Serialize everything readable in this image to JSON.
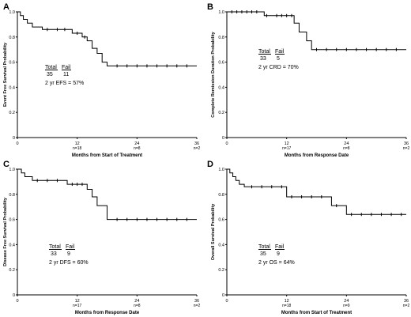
{
  "chart_data": [
    {
      "type": "line",
      "panel_label": "A",
      "xlabel": "Months from Start of Treatment",
      "ylabel": "Event Free Survival Probability",
      "xlim": [
        0,
        36
      ],
      "ylim": [
        0,
        1.0
      ],
      "x_ticks": [
        "0",
        "12",
        "24",
        "36"
      ],
      "y_ticks": [
        "0",
        "0.2",
        "0.4",
        "0.6",
        "0.8",
        "1.0"
      ],
      "at_risk": [
        {
          "x": 12,
          "label": "n=18"
        },
        {
          "x": 24,
          "label": "n=8"
        },
        {
          "x": 36,
          "label": "n=2"
        }
      ],
      "annotation": {
        "total_label": "Total",
        "fail_label": "Fail",
        "total": "35",
        "fail": "11",
        "summary": "2 yr  EFS = 57%"
      },
      "step_points": [
        [
          0,
          1.0
        ],
        [
          0.6,
          0.97
        ],
        [
          1.2,
          0.94
        ],
        [
          2.0,
          0.91
        ],
        [
          3.0,
          0.88
        ],
        [
          5.0,
          0.86
        ],
        [
          11.0,
          0.83
        ],
        [
          13.0,
          0.8
        ],
        [
          14.0,
          0.77
        ],
        [
          15.0,
          0.71
        ],
        [
          16.0,
          0.67
        ],
        [
          17.0,
          0.6
        ],
        [
          18.0,
          0.57
        ],
        [
          36.0,
          0.57
        ]
      ],
      "censor_x": [
        6,
        8,
        9.5,
        12,
        13.5,
        20,
        22,
        24,
        26,
        28,
        30,
        32,
        34
      ]
    },
    {
      "type": "line",
      "panel_label": "B",
      "xlabel": "Months from Response Date",
      "ylabel": "Complete Remission Duration Probability",
      "xlim": [
        0,
        36
      ],
      "ylim": [
        0,
        1.0
      ],
      "x_ticks": [
        "0",
        "12",
        "24",
        "36"
      ],
      "y_ticks": [
        "0",
        "0.2",
        "0.4",
        "0.6",
        "0.8",
        "1.0"
      ],
      "at_risk": [
        {
          "x": 12,
          "label": "n=17"
        },
        {
          "x": 24,
          "label": "n=8"
        },
        {
          "x": 36,
          "label": "n=2"
        }
      ],
      "annotation": {
        "total_label": "Total",
        "fail_label": "Fail",
        "total": "33",
        "fail": "5",
        "summary": "2 yr  CRD = 70%"
      },
      "step_points": [
        [
          0,
          1.0
        ],
        [
          7.5,
          0.97
        ],
        [
          13.5,
          0.91
        ],
        [
          14.5,
          0.84
        ],
        [
          16.0,
          0.77
        ],
        [
          17.0,
          0.7
        ],
        [
          36.0,
          0.7
        ]
      ],
      "censor_x": [
        1,
        2,
        3,
        4,
        5,
        6,
        8,
        10,
        11,
        12,
        13,
        18,
        20,
        22,
        24,
        26,
        28,
        30,
        32,
        34
      ]
    },
    {
      "type": "line",
      "panel_label": "C",
      "xlabel": "Months from Response Date",
      "ylabel": "Disease Free Survival Probability",
      "xlim": [
        0,
        36
      ],
      "ylim": [
        0,
        1.0
      ],
      "x_ticks": [
        "0",
        "12",
        "24",
        "36"
      ],
      "y_ticks": [
        "0",
        "0.2",
        "0.4",
        "0.6",
        "0.8",
        "1.0"
      ],
      "at_risk": [
        {
          "x": 12,
          "label": "n=17"
        },
        {
          "x": 24,
          "label": "n=8"
        },
        {
          "x": 36,
          "label": "n=2"
        }
      ],
      "annotation": {
        "total_label": "Total",
        "fail_label": "Fail",
        "total": "33",
        "fail": "9",
        "summary": "2 yr  DFS = 60%"
      },
      "step_points": [
        [
          0,
          1.0
        ],
        [
          0.8,
          0.97
        ],
        [
          1.5,
          0.94
        ],
        [
          3.0,
          0.91
        ],
        [
          10.0,
          0.88
        ],
        [
          14.0,
          0.84
        ],
        [
          15.0,
          0.78
        ],
        [
          16.0,
          0.71
        ],
        [
          18.0,
          0.6
        ],
        [
          36.0,
          0.6
        ]
      ],
      "censor_x": [
        4,
        6,
        8,
        11,
        12,
        13,
        20,
        22,
        24,
        26,
        28,
        30,
        32,
        34
      ]
    },
    {
      "type": "line",
      "panel_label": "D",
      "xlabel": "Months from Start of Treatment",
      "ylabel": "Overall Survival Probability",
      "xlim": [
        0,
        36
      ],
      "ylim": [
        0,
        1.0
      ],
      "x_ticks": [
        "0",
        "12",
        "24",
        "36"
      ],
      "y_ticks": [
        "0",
        "0.2",
        "0.4",
        "0.6",
        "0.8",
        "1.0"
      ],
      "at_risk": [
        {
          "x": 12,
          "label": "n=18"
        },
        {
          "x": 24,
          "label": "n=9"
        },
        {
          "x": 36,
          "label": "n=2"
        }
      ],
      "annotation": {
        "total_label": "Total",
        "fail_label": "Fail",
        "total": "35",
        "fail": "9",
        "summary": "2 yr  OS = 64%"
      },
      "step_points": [
        [
          0,
          1.0
        ],
        [
          0.6,
          0.97
        ],
        [
          1.2,
          0.94
        ],
        [
          1.8,
          0.91
        ],
        [
          2.5,
          0.88
        ],
        [
          3.5,
          0.86
        ],
        [
          12.0,
          0.78
        ],
        [
          21.0,
          0.71
        ],
        [
          24.0,
          0.64
        ],
        [
          36.0,
          0.64
        ]
      ],
      "censor_x": [
        5,
        7,
        9,
        11,
        13,
        15,
        17,
        19,
        22,
        25,
        27,
        29,
        31,
        33,
        35
      ]
    }
  ]
}
